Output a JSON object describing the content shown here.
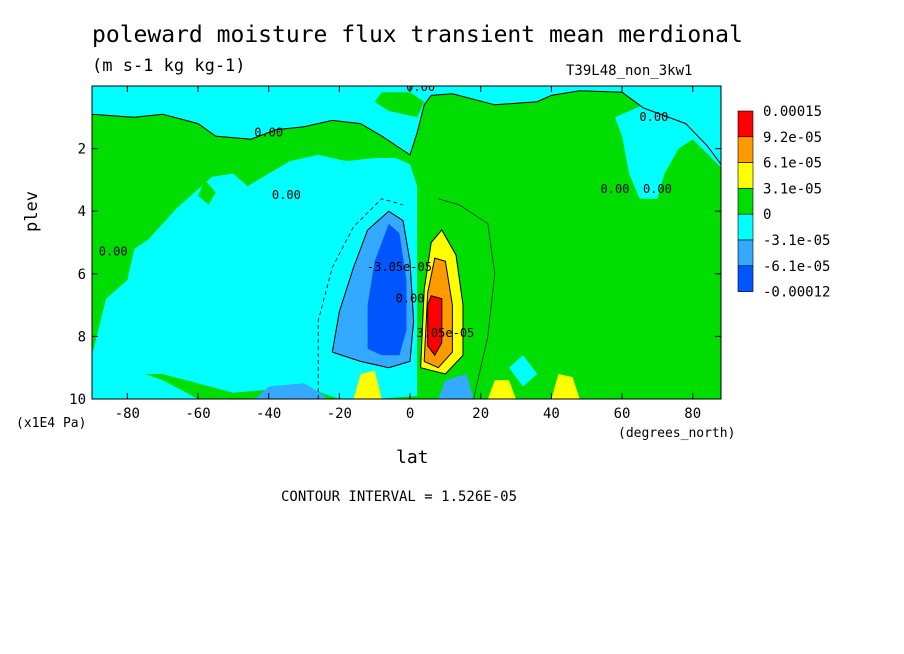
{
  "chart_data": {
    "type": "heatmap",
    "title": "poleward moisture flux transient mean merdional",
    "units": "(m s-1 kg kg-1)",
    "run_label": "T39L48_non_3kw1",
    "xlabel": "lat",
    "ylabel": "plev",
    "x_unit": "(degrees_north)",
    "y_unit": "(x1E4 Pa)",
    "xlim": [
      -90,
      88
    ],
    "ylim": [
      10,
      0
    ],
    "x_ticks": [
      "-80",
      "-60",
      "-40",
      "-20",
      "0",
      "20",
      "40",
      "60",
      "80"
    ],
    "x_tick_values": [
      -80,
      -60,
      -40,
      -20,
      0,
      20,
      40,
      60,
      80
    ],
    "y_ticks": [
      "2",
      "4",
      "6",
      "8",
      "10"
    ],
    "y_tick_values": [
      2,
      4,
      6,
      8,
      10
    ],
    "contour_interval_text": "CONTOUR INTERVAL = 1.526E-05",
    "legend": {
      "labels": [
        "0.00015",
        "9.2e-05",
        "6.1e-05",
        "3.1e-05",
        "0",
        "-3.1e-05",
        "-6.1e-05",
        "-0.00012"
      ],
      "colors": [
        "#ff0000",
        "#ff9900",
        "#ffff00",
        "#00dd00",
        "#00ffff",
        "#33aaff",
        "#0055ff"
      ]
    },
    "contour_labels": [
      {
        "text": "0.00",
        "lat": 3,
        "plev": 0.05
      },
      {
        "text": "0.00",
        "lat": -40,
        "plev": 1.5
      },
      {
        "text": "0.00",
        "lat": 69,
        "plev": 1.0
      },
      {
        "text": "0.00",
        "lat": -35,
        "plev": 3.5
      },
      {
        "text": "0.00",
        "lat": -84,
        "plev": 5.3
      },
      {
        "text": "0.00",
        "lat": 58,
        "plev": 3.3
      },
      {
        "text": "0.00",
        "lat": 70,
        "plev": 3.3
      },
      {
        "text": "-3.05e-05",
        "lat": -3,
        "plev": 5.8
      },
      {
        "text": "0.00",
        "lat": 0,
        "plev": 6.8
      },
      {
        "text": "3.05e-05",
        "lat": 10,
        "plev": 7.9
      }
    ],
    "fields": {
      "background": {
        "min": 0,
        "max": 3.1e-05
      },
      "regions": [
        {
          "name": "north-high-latitude-green",
          "min": 0,
          "max": 3.1e-05
        },
        {
          "name": "tropical-upper-cyan",
          "min": -3.1e-05,
          "max": 0
        },
        {
          "name": "southern-midlat-cyan",
          "min": -3.1e-05,
          "max": 0
        },
        {
          "name": "negative-core",
          "min": -6.1e-05,
          "max": -3.1e-05,
          "center_lat": -7,
          "center_plev": 7.0
        },
        {
          "name": "positive-core",
          "min": 9.2e-05,
          "max": 0.00015,
          "center_lat": 7,
          "center_plev": 7.8
        }
      ]
    }
  }
}
